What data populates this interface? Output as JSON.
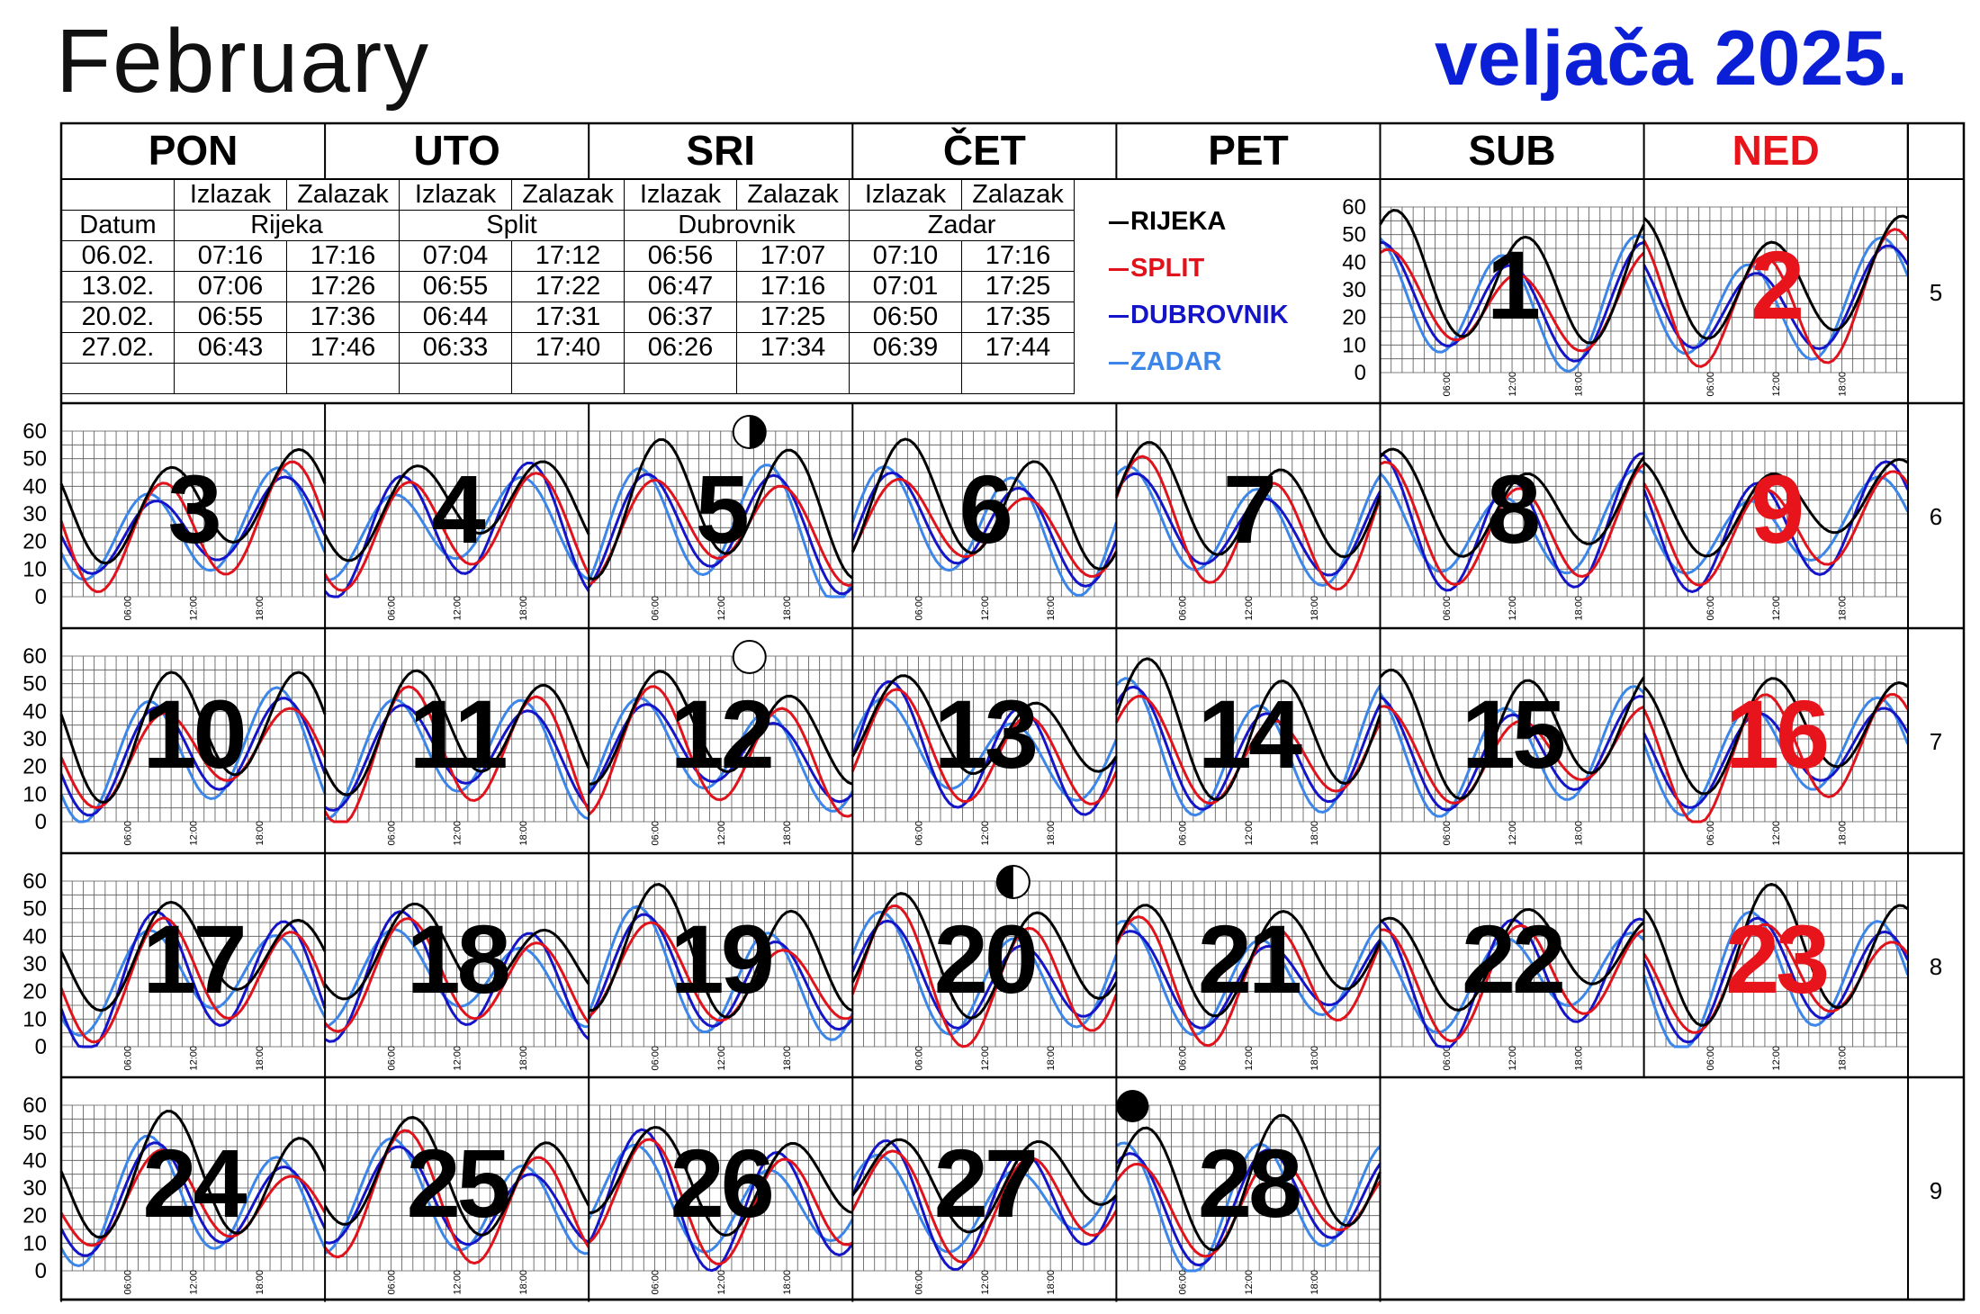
{
  "title_en": "February",
  "title_hr": "veljača 2025.",
  "weekdays": [
    "PON",
    "UTO",
    "SRI",
    "ČET",
    "PET",
    "SUB",
    "NED"
  ],
  "sun_table": {
    "header_top": [
      "Izlazak",
      "Zalazak",
      "Izlazak",
      "Zalazak",
      "Izlazak",
      "Zalazak",
      "Izlazak",
      "Zalazak"
    ],
    "date_label": "Datum",
    "cities": [
      "Rijeka",
      "Split",
      "Dubrovnik",
      "Zadar"
    ],
    "rows": [
      {
        "date": "06.02.",
        "values": [
          "07:16",
          "17:16",
          "07:04",
          "17:12",
          "06:56",
          "17:07",
          "07:10",
          "17:16"
        ]
      },
      {
        "date": "13.02.",
        "values": [
          "07:06",
          "17:26",
          "06:55",
          "17:22",
          "06:47",
          "17:16",
          "07:01",
          "17:25"
        ]
      },
      {
        "date": "20.02.",
        "values": [
          "06:55",
          "17:36",
          "06:44",
          "17:31",
          "06:37",
          "17:25",
          "06:50",
          "17:35"
        ]
      },
      {
        "date": "27.02.",
        "values": [
          "06:43",
          "17:46",
          "06:33",
          "17:40",
          "06:26",
          "17:34",
          "06:39",
          "17:44"
        ]
      }
    ]
  },
  "legend": [
    {
      "name": "RIJEKA",
      "color": "#000000"
    },
    {
      "name": "SPLIT",
      "color": "#e0121b"
    },
    {
      "name": "DUBROVNIK",
      "color": "#1414c8"
    },
    {
      "name": "ZADAR",
      "color": "#3b86e8"
    }
  ],
  "y_ticks": [
    "60",
    "50",
    "40",
    "30",
    "20",
    "10",
    "0"
  ],
  "time_ticks": [
    "06:00",
    "12:00",
    "18:00"
  ],
  "week_numbers": [
    "5",
    "6",
    "7",
    "8",
    "9"
  ],
  "days": [
    {
      "n": "1",
      "w": 0,
      "d": 5,
      "sunday": false
    },
    {
      "n": "2",
      "w": 0,
      "d": 6,
      "sunday": true
    },
    {
      "n": "3",
      "w": 1,
      "d": 0,
      "sunday": false
    },
    {
      "n": "4",
      "w": 1,
      "d": 1,
      "sunday": false
    },
    {
      "n": "5",
      "w": 1,
      "d": 2,
      "sunday": false,
      "moon": "first-quarter"
    },
    {
      "n": "6",
      "w": 1,
      "d": 3,
      "sunday": false
    },
    {
      "n": "7",
      "w": 1,
      "d": 4,
      "sunday": false
    },
    {
      "n": "8",
      "w": 1,
      "d": 5,
      "sunday": false
    },
    {
      "n": "9",
      "w": 1,
      "d": 6,
      "sunday": true
    },
    {
      "n": "10",
      "w": 2,
      "d": 0,
      "sunday": false
    },
    {
      "n": "11",
      "w": 2,
      "d": 1,
      "sunday": false
    },
    {
      "n": "12",
      "w": 2,
      "d": 2,
      "sunday": false,
      "moon": "full"
    },
    {
      "n": "13",
      "w": 2,
      "d": 3,
      "sunday": false
    },
    {
      "n": "14",
      "w": 2,
      "d": 4,
      "sunday": false
    },
    {
      "n": "15",
      "w": 2,
      "d": 5,
      "sunday": false
    },
    {
      "n": "16",
      "w": 2,
      "d": 6,
      "sunday": true
    },
    {
      "n": "17",
      "w": 3,
      "d": 0,
      "sunday": false
    },
    {
      "n": "18",
      "w": 3,
      "d": 1,
      "sunday": false
    },
    {
      "n": "19",
      "w": 3,
      "d": 2,
      "sunday": false
    },
    {
      "n": "20",
      "w": 3,
      "d": 3,
      "sunday": false,
      "moon": "last-quarter"
    },
    {
      "n": "21",
      "w": 3,
      "d": 4,
      "sunday": false
    },
    {
      "n": "22",
      "w": 3,
      "d": 5,
      "sunday": false
    },
    {
      "n": "23",
      "w": 3,
      "d": 6,
      "sunday": true
    },
    {
      "n": "24",
      "w": 4,
      "d": 0,
      "sunday": false
    },
    {
      "n": "25",
      "w": 4,
      "d": 1,
      "sunday": false
    },
    {
      "n": "26",
      "w": 4,
      "d": 2,
      "sunday": false
    },
    {
      "n": "27",
      "w": 4,
      "d": 3,
      "sunday": false
    },
    {
      "n": "28",
      "w": 4,
      "d": 4,
      "sunday": false,
      "moon": "new"
    }
  ],
  "colors": {
    "sunday": "#e8141b",
    "title_hr": "#0b1fd6"
  }
}
